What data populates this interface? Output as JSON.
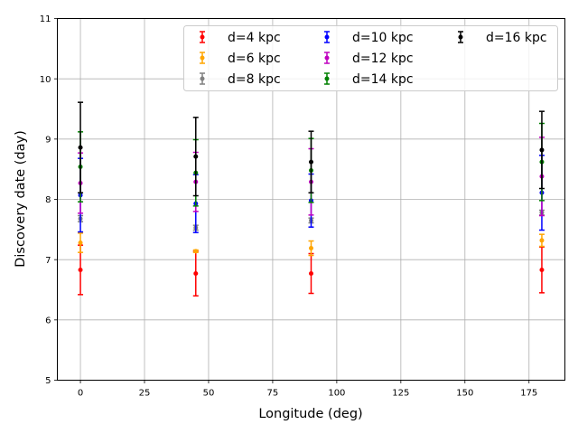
{
  "chart_data": {
    "type": "scatter",
    "title": "",
    "xlabel": "Longitude (deg)",
    "ylabel": "Discovery date (day)",
    "xlim": [
      -9,
      189
    ],
    "ylim": [
      5,
      11
    ],
    "xticks": [
      0,
      25,
      50,
      75,
      100,
      125,
      150,
      175
    ],
    "yticks": [
      5,
      6,
      7,
      8,
      9,
      10,
      11
    ],
    "grid": true,
    "legend_position": "top-right",
    "x": [
      0,
      45,
      90,
      180
    ],
    "series": [
      {
        "name": "d=4 kpc",
        "color": "#ff0000",
        "values": [
          6.83,
          6.77,
          6.77,
          6.83
        ],
        "err": [
          0.41,
          0.37,
          0.33,
          0.38
        ]
      },
      {
        "name": "d=6 kpc",
        "color": "#ffa500",
        "values": [
          7.28,
          7.14,
          7.19,
          7.32
        ],
        "err": [
          0.16,
          0.02,
          0.12,
          0.1
        ]
      },
      {
        "name": "d=8 kpc",
        "color": "#808080",
        "values": [
          7.68,
          7.53,
          7.65,
          7.78
        ],
        "err": [
          0.05,
          0.04,
          0.04,
          0.04
        ]
      },
      {
        "name": "d=10 kpc",
        "color": "#0000ff",
        "values": [
          8.07,
          7.93,
          7.98,
          8.11
        ],
        "err": [
          0.61,
          0.48,
          0.44,
          0.62
        ]
      },
      {
        "name": "d=12 kpc",
        "color": "#bf00bf",
        "values": [
          8.27,
          8.29,
          8.29,
          8.38
        ],
        "err": [
          0.5,
          0.49,
          0.55,
          0.65
        ]
      },
      {
        "name": "d=14 kpc",
        "color": "#008000",
        "values": [
          8.54,
          8.44,
          8.48,
          8.62
        ],
        "err": [
          0.58,
          0.55,
          0.53,
          0.64
        ]
      },
      {
        "name": "d=16 kpc",
        "color": "#000000",
        "values": [
          8.86,
          8.71,
          8.62,
          8.82
        ],
        "err": [
          0.75,
          0.65,
          0.51,
          0.64
        ]
      }
    ]
  }
}
